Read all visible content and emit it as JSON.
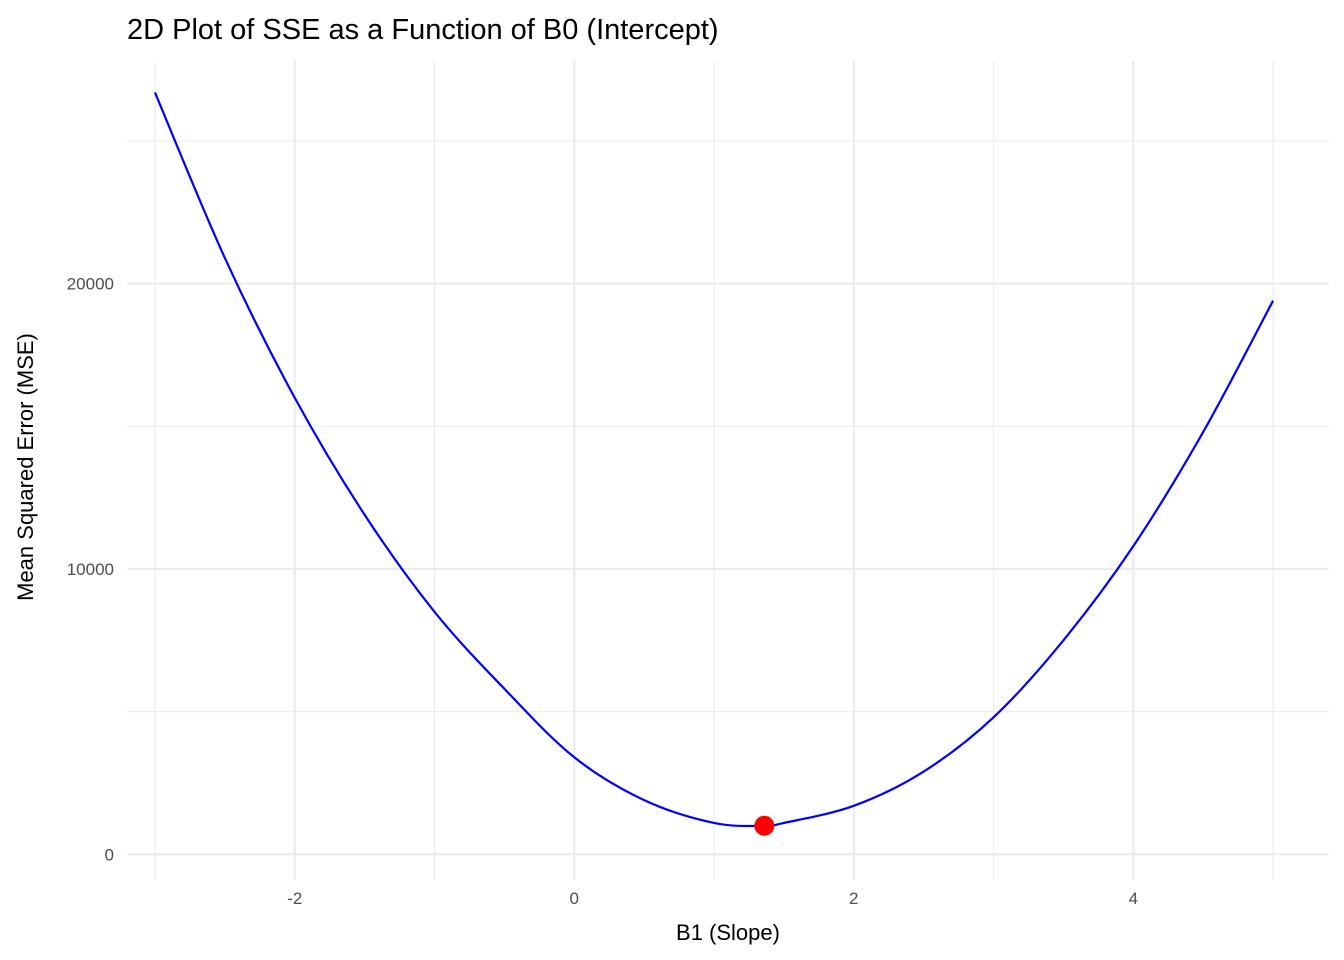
{
  "chart_data": {
    "type": "line",
    "title": "2D Plot of SSE as a Function of B0 (Intercept)",
    "xlabel": "B1 (Slope)",
    "ylabel": "Mean Squared Error (MSE)",
    "xlim": [
      -3.2,
      5.4
    ],
    "ylim": [
      -900,
      27800
    ],
    "x_ticks": [
      -2,
      0,
      2,
      4
    ],
    "y_ticks": [
      0,
      10000,
      20000
    ],
    "x_minor_ticks": [
      -3,
      -1,
      1,
      3,
      5
    ],
    "y_minor_ticks": [
      5000,
      15000,
      25000
    ],
    "grid": true,
    "colors": {
      "line": "#0000ff",
      "point": "#ff0000"
    },
    "series": [
      {
        "points": [
          {
            "x": -3.0,
            "y": 26700
          },
          {
            "x": -2.5,
            "y": 20900
          },
          {
            "x": -2.0,
            "y": 16000
          },
          {
            "x": -1.5,
            "y": 11900
          },
          {
            "x": -1.0,
            "y": 8500
          },
          {
            "x": -0.5,
            "y": 5800
          },
          {
            "x": 0.0,
            "y": 3400
          },
          {
            "x": 0.5,
            "y": 1900
          },
          {
            "x": 1.0,
            "y": 1100
          },
          {
            "x": 1.36,
            "y": 1000
          },
          {
            "x": 1.5,
            "y": 1100
          },
          {
            "x": 2.0,
            "y": 1700
          },
          {
            "x": 2.5,
            "y": 2900
          },
          {
            "x": 3.0,
            "y": 4800
          },
          {
            "x": 3.5,
            "y": 7500
          },
          {
            "x": 4.0,
            "y": 10800
          },
          {
            "x": 4.5,
            "y": 14800
          },
          {
            "x": 5.0,
            "y": 19400
          }
        ]
      }
    ],
    "minimum_point": {
      "x": 1.36,
      "y": 1000
    }
  }
}
